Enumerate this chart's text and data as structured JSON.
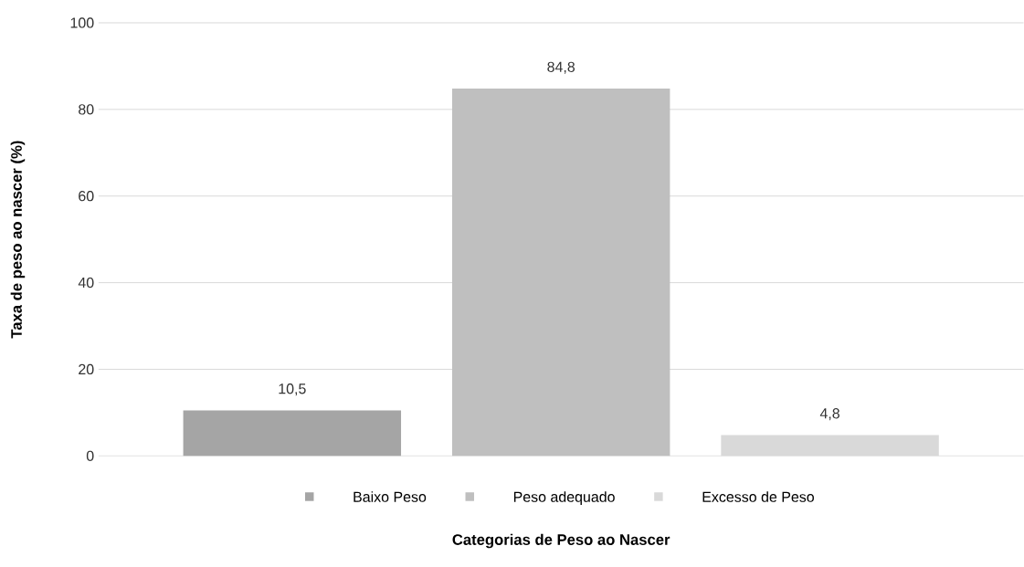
{
  "chart_data": {
    "type": "bar",
    "xlabel": "Categorias de Peso ao Nascer",
    "ylabel": "Taxa de peso ao nascer (%)",
    "categories": [
      null,
      null,
      null
    ],
    "series": [
      {
        "name": "Baixo Peso",
        "color": "#a5a5a5",
        "values": [
          10.5,
          null,
          null
        ],
        "value_labels": [
          "10,5",
          null,
          null
        ]
      },
      {
        "name": "Peso adequado",
        "color": "#bfbfbf",
        "values": [
          null,
          84.8,
          null
        ],
        "value_labels": [
          null,
          "84,8",
          null
        ]
      },
      {
        "name": "Excesso de Peso",
        "color": "#d9d9d9",
        "values": [
          null,
          null,
          4.8
        ],
        "value_labels": [
          null,
          null,
          "4,8"
        ]
      }
    ],
    "ylim": [
      0,
      100
    ],
    "yticks": [
      0,
      20,
      40,
      60,
      80,
      100
    ],
    "grid": "y",
    "legend": "bottom"
  }
}
